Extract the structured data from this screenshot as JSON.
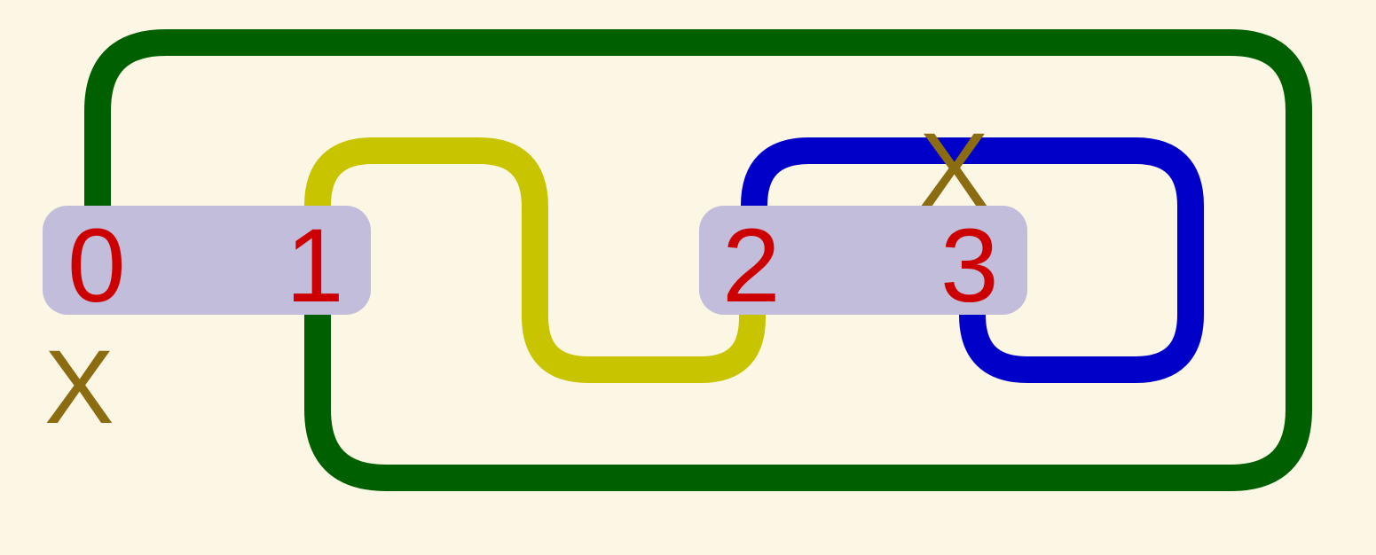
{
  "colors": {
    "background": "#fcf6e4",
    "box": "#c1bdda",
    "label": "#cc0000",
    "marker": "#8c6c10",
    "wire_green": "#006000",
    "wire_yellow": "#c8c400",
    "wire_blue": "#0000c8"
  },
  "nodes": [
    {
      "id": "node-0",
      "label": "0"
    },
    {
      "id": "node-1",
      "label": "1"
    },
    {
      "id": "node-2",
      "label": "2"
    },
    {
      "id": "node-3",
      "label": "3"
    }
  ],
  "markers": [
    {
      "id": "marker-node-3",
      "label": "X"
    },
    {
      "id": "marker-node-0",
      "label": "X"
    }
  ],
  "connections": [
    {
      "id": "green",
      "from": "0",
      "to": "1",
      "color": "#006000"
    },
    {
      "id": "yellow",
      "from": "1",
      "to": "2",
      "color": "#c8c400"
    },
    {
      "id": "blue",
      "from": "2",
      "to": "3",
      "color": "#0000c8"
    }
  ]
}
